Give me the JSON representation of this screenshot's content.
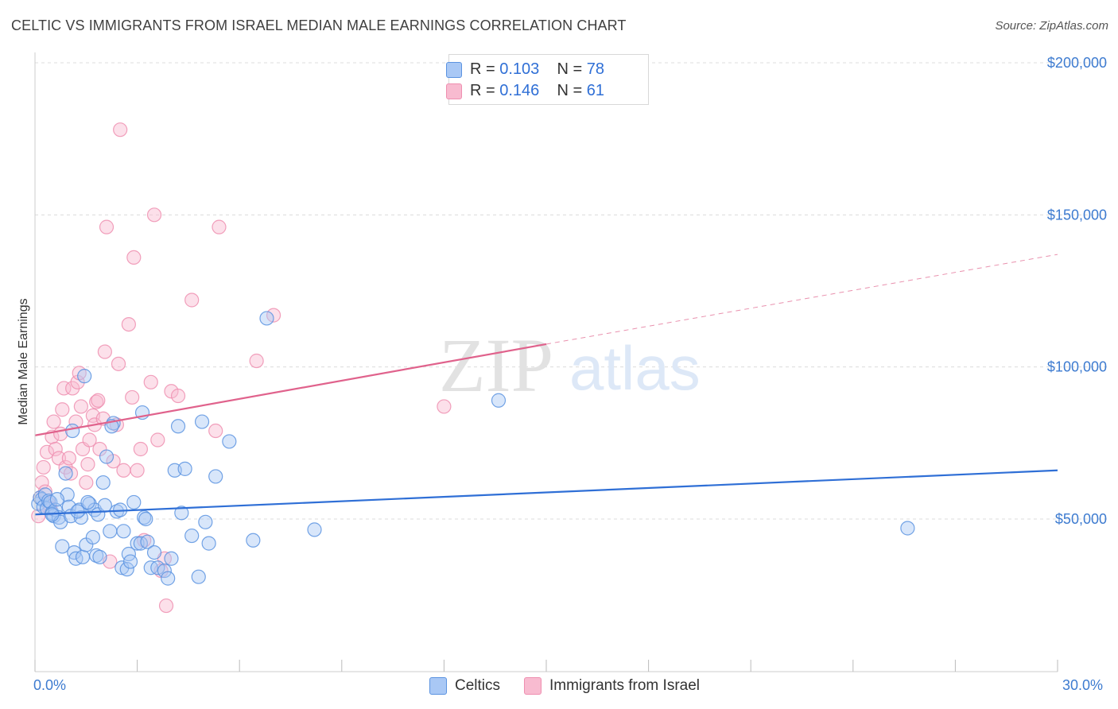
{
  "title": "CELTIC VS IMMIGRANTS FROM ISRAEL MEDIAN MALE EARNINGS CORRELATION CHART",
  "source": "Source: ZipAtlas.com",
  "watermark": {
    "zip": "ZIP",
    "atlas": "atlas"
  },
  "legend": [
    {
      "r_label": "R = ",
      "r_value": "0.103",
      "n_label": "N = ",
      "n_value": "78",
      "color": "#a9c8f5"
    },
    {
      "r_label": "R = ",
      "r_value": "0.146",
      "n_label": "N = ",
      "n_value": "61",
      "color": "#f8bbd0"
    }
  ],
  "x_axis": {
    "min_label": "0.0%",
    "max_label": "30.0%"
  },
  "bottom_legend": [
    {
      "label": "Celtics",
      "color": "#a9c8f5"
    },
    {
      "label": "Immigrants from Israel",
      "color": "#f8bbd0"
    }
  ],
  "chart_data": {
    "type": "scatter",
    "title": "CELTIC VS IMMIGRANTS FROM ISRAEL MEDIAN MALE EARNINGS CORRELATION CHART",
    "xlabel": "",
    "ylabel": "Median Male Earnings",
    "xlim": [
      0,
      30
    ],
    "ylim": [
      0,
      210000
    ],
    "yticks": [
      50000,
      100000,
      150000,
      200000
    ],
    "ytick_labels": [
      "$50,000",
      "$100,000",
      "$150,000",
      "$200,000"
    ],
    "grid": true,
    "series": [
      {
        "name": "Celtics",
        "color": "#5b93e0",
        "fill": "#a9c8f5",
        "trend": {
          "x0": 0,
          "y0": 51500,
          "x1": 30,
          "y1": 66000,
          "color": "#2f6fd6"
        },
        "points": [
          [
            0.1,
            55000
          ],
          [
            0.15,
            57000
          ],
          [
            0.2,
            56500
          ],
          [
            0.25,
            54000
          ],
          [
            0.3,
            58000
          ],
          [
            0.35,
            53500
          ],
          [
            0.4,
            56000
          ],
          [
            0.45,
            55500
          ],
          [
            0.5,
            52000
          ],
          [
            0.55,
            51000
          ],
          [
            0.6,
            53000
          ],
          [
            0.7,
            50500
          ],
          [
            0.75,
            49000
          ],
          [
            0.8,
            41000
          ],
          [
            0.9,
            65000
          ],
          [
            0.95,
            58000
          ],
          [
            1.0,
            54000
          ],
          [
            1.05,
            51000
          ],
          [
            1.1,
            79000
          ],
          [
            1.15,
            39000
          ],
          [
            1.2,
            37000
          ],
          [
            1.3,
            53000
          ],
          [
            1.35,
            50500
          ],
          [
            1.4,
            37500
          ],
          [
            1.45,
            97000
          ],
          [
            1.5,
            41500
          ],
          [
            1.6,
            55000
          ],
          [
            1.7,
            44000
          ],
          [
            1.75,
            53000
          ],
          [
            1.8,
            38000
          ],
          [
            1.85,
            51500
          ],
          [
            1.9,
            37500
          ],
          [
            2.0,
            62000
          ],
          [
            2.05,
            54500
          ],
          [
            2.1,
            70500
          ],
          [
            2.2,
            46000
          ],
          [
            2.3,
            81500
          ],
          [
            2.4,
            52500
          ],
          [
            2.5,
            53000
          ],
          [
            2.55,
            34000
          ],
          [
            2.6,
            46000
          ],
          [
            2.7,
            33500
          ],
          [
            2.75,
            38500
          ],
          [
            2.8,
            36000
          ],
          [
            2.9,
            55500
          ],
          [
            3.0,
            42000
          ],
          [
            3.1,
            42000
          ],
          [
            3.15,
            85000
          ],
          [
            3.2,
            50500
          ],
          [
            3.25,
            50000
          ],
          [
            3.3,
            42500
          ],
          [
            3.4,
            34000
          ],
          [
            3.5,
            39000
          ],
          [
            3.6,
            34000
          ],
          [
            3.8,
            33000
          ],
          [
            3.9,
            30500
          ],
          [
            4.0,
            37000
          ],
          [
            4.1,
            66000
          ],
          [
            4.2,
            80500
          ],
          [
            4.3,
            52000
          ],
          [
            4.4,
            66500
          ],
          [
            4.6,
            44500
          ],
          [
            4.8,
            31000
          ],
          [
            4.9,
            82000
          ],
          [
            5.0,
            49000
          ],
          [
            5.1,
            42000
          ],
          [
            5.3,
            64000
          ],
          [
            5.7,
            75500
          ],
          [
            6.4,
            43000
          ],
          [
            6.8,
            116000
          ],
          [
            8.2,
            46500
          ],
          [
            13.6,
            89000
          ],
          [
            25.6,
            47000
          ],
          [
            0.5,
            51500
          ],
          [
            1.25,
            52500
          ],
          [
            2.25,
            80500
          ],
          [
            0.65,
            56500
          ],
          [
            1.55,
            55500
          ]
        ]
      },
      {
        "name": "Immigrants from Israel",
        "color": "#ef8fb0",
        "fill": "#f8bbd0",
        "trend": {
          "x0": 0,
          "y0": 77500,
          "x1": 15,
          "y1": 107500,
          "x2": 30,
          "y2": 137000,
          "color": "#e0628c"
        },
        "points": [
          [
            0.1,
            51000
          ],
          [
            0.15,
            57000
          ],
          [
            0.2,
            62000
          ],
          [
            0.25,
            67000
          ],
          [
            0.3,
            59000
          ],
          [
            0.35,
            72000
          ],
          [
            0.4,
            55000
          ],
          [
            0.45,
            53500
          ],
          [
            0.5,
            77000
          ],
          [
            0.55,
            82000
          ],
          [
            0.6,
            73000
          ],
          [
            0.7,
            70000
          ],
          [
            0.75,
            78000
          ],
          [
            0.8,
            86000
          ],
          [
            0.85,
            93000
          ],
          [
            0.9,
            67000
          ],
          [
            1.0,
            70000
          ],
          [
            1.05,
            65000
          ],
          [
            1.1,
            93000
          ],
          [
            1.2,
            82000
          ],
          [
            1.25,
            95000
          ],
          [
            1.3,
            98000
          ],
          [
            1.35,
            87000
          ],
          [
            1.4,
            73000
          ],
          [
            1.5,
            62000
          ],
          [
            1.55,
            68000
          ],
          [
            1.6,
            76000
          ],
          [
            1.7,
            84000
          ],
          [
            1.75,
            81000
          ],
          [
            1.8,
            88500
          ],
          [
            1.85,
            89000
          ],
          [
            1.9,
            73000
          ],
          [
            2.0,
            83000
          ],
          [
            2.05,
            105000
          ],
          [
            2.1,
            146000
          ],
          [
            2.2,
            36000
          ],
          [
            2.3,
            69000
          ],
          [
            2.4,
            81000
          ],
          [
            2.45,
            101000
          ],
          [
            2.5,
            178000
          ],
          [
            2.6,
            66000
          ],
          [
            2.75,
            114000
          ],
          [
            2.85,
            90000
          ],
          [
            2.9,
            136000
          ],
          [
            3.0,
            66000
          ],
          [
            3.1,
            73000
          ],
          [
            3.2,
            43000
          ],
          [
            3.4,
            95000
          ],
          [
            3.5,
            150000
          ],
          [
            3.6,
            76000
          ],
          [
            3.7,
            33000
          ],
          [
            3.8,
            37000
          ],
          [
            3.85,
            21500
          ],
          [
            4.0,
            92000
          ],
          [
            4.2,
            90500
          ],
          [
            4.6,
            122000
          ],
          [
            5.3,
            79000
          ],
          [
            5.4,
            146000
          ],
          [
            6.5,
            102000
          ],
          [
            7.0,
            117000
          ],
          [
            12.0,
            87000
          ]
        ]
      }
    ]
  }
}
